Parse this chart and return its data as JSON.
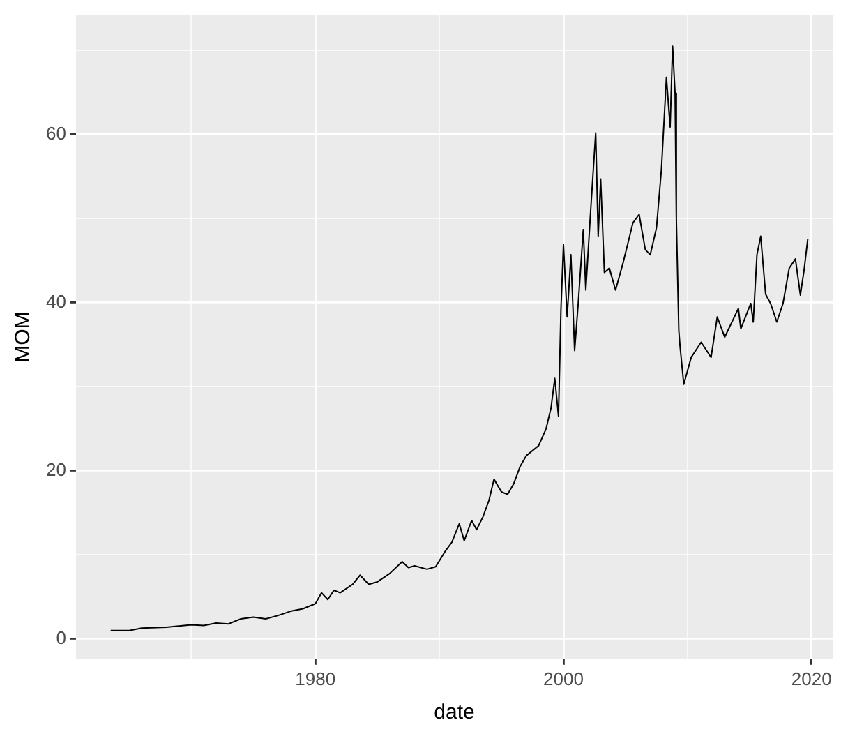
{
  "chart_data": {
    "type": "line",
    "xlabel": "date",
    "ylabel": "MOM",
    "xlim": [
      1960.7,
      2021.7
    ],
    "ylim": [
      -2.4,
      74.2
    ],
    "xticks": [
      {
        "value": 1970,
        "label": null
      },
      1980,
      {
        "value": 1990,
        "label": null
      },
      2000,
      {
        "value": 2010,
        "label": null
      },
      2020
    ],
    "yticks": [
      0,
      {
        "value": 10,
        "label": null
      },
      20,
      {
        "value": 30,
        "label": null
      },
      40,
      {
        "value": 50,
        "label": null
      },
      60,
      {
        "value": 70,
        "label": null
      }
    ],
    "grid": true,
    "legend": false,
    "marker": "none",
    "line_style": "solid",
    "series": [
      {
        "color": "#000000",
        "x": [
          1963.5,
          1965,
          1966,
          1968,
          1970,
          1971,
          1972,
          1973,
          1974,
          1975,
          1976,
          1977,
          1978,
          1979,
          1980,
          1980.5,
          1981,
          1981.5,
          1982,
          1983,
          1983.6,
          1984.3,
          1985,
          1986,
          1987,
          1987.5,
          1988,
          1989,
          1989.7,
          1990.5,
          1991,
          1991.6,
          1992,
          1992.6,
          1993,
          1993.5,
          1994,
          1994.4,
          1995,
          1995.5,
          1996,
          1996.5,
          1997,
          1998,
          1998.6,
          1999,
          1999.3,
          1999.6,
          1999.8,
          2000,
          2000.3,
          2000.6,
          2000.9,
          2001.2,
          2001.6,
          2001.8,
          2002.2,
          2002.6,
          2002.8,
          2003,
          2003.3,
          2003.7,
          2004.2,
          2004.8,
          2005.6,
          2006.1,
          2006.6,
          2007,
          2007.5,
          2007.9,
          2008.3,
          2008.6,
          2008.8,
          2009,
          2009.1,
          2009.3,
          2009.4,
          2009.7,
          2010,
          2010.3,
          2011.1,
          2011.9,
          2012.4,
          2013,
          2014.1,
          2014.3,
          2015.1,
          2015.3,
          2015.6,
          2015.9,
          2016.3,
          2016.7,
          2017.2,
          2017.7,
          2018.2,
          2018.7,
          2019.1,
          2019.4,
          2019.7
        ],
        "values": [
          1.0,
          1.0,
          1.3,
          1.4,
          1.7,
          1.6,
          1.9,
          1.8,
          2.4,
          2.6,
          2.4,
          2.8,
          3.3,
          3.6,
          4.2,
          5.5,
          4.7,
          5.8,
          5.5,
          6.5,
          7.6,
          6.5,
          6.8,
          7.8,
          9.2,
          8.5,
          8.7,
          8.3,
          8.6,
          10.5,
          11.5,
          13.7,
          11.7,
          14.1,
          13,
          14.5,
          16.5,
          19,
          17.5,
          17.2,
          18.5,
          20.5,
          21.8,
          23,
          25,
          27.5,
          31,
          26.5,
          39.3,
          46.9,
          38.3,
          45.7,
          34.3,
          40.1,
          48.7,
          41.5,
          51.1,
          60.2,
          47.9,
          54.7,
          43.6,
          44.1,
          41.5,
          44.7,
          49.5,
          50.5,
          46.3,
          45.7,
          48.9,
          55.9,
          66.8,
          60.9,
          70.5,
          64.9,
          50,
          36.7,
          34.8,
          30.3,
          31.9,
          33.5,
          35.3,
          33.5,
          38.3,
          35.9,
          39.3,
          36.9,
          39.9,
          37.7,
          45.7,
          47.9,
          41,
          39.9,
          37.7,
          39.9,
          44.1,
          45.2,
          40.9,
          43.9,
          47.6
        ]
      }
    ]
  }
}
